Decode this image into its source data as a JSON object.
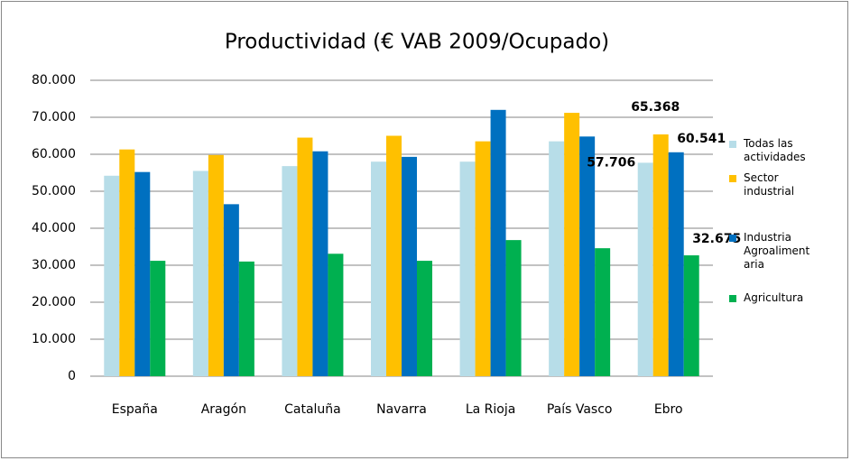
{
  "chart_data": {
    "type": "bar",
    "title": "Productividad (€ VAB 2009/Ocupado)",
    "categories": [
      "España",
      "Aragón",
      "Cataluña",
      "Navarra",
      "La Rioja",
      "País Vasco",
      "Ebro"
    ],
    "series": [
      {
        "name": "Todas las actividades",
        "color": "#b7dde8",
        "values": [
          54200,
          55500,
          56800,
          58000,
          58000,
          63500,
          57706
        ],
        "value_labels": [
          null,
          null,
          null,
          null,
          null,
          null,
          "57.706"
        ]
      },
      {
        "name": "Sector industrial",
        "color": "#ffc000",
        "values": [
          61300,
          59800,
          64500,
          65000,
          63500,
          71200,
          65368
        ],
        "value_labels": [
          null,
          null,
          null,
          null,
          null,
          null,
          "65.368"
        ]
      },
      {
        "name": "Industria Agroalimentaria",
        "color": "#0070c0",
        "values": [
          55200,
          46500,
          60800,
          59300,
          72000,
          64800,
          60541
        ],
        "value_labels": [
          null,
          null,
          null,
          null,
          null,
          null,
          "60.541"
        ]
      },
      {
        "name": "Agricultura",
        "color": "#00b050",
        "values": [
          31200,
          31000,
          33100,
          31200,
          36800,
          34600,
          32675
        ],
        "value_labels": [
          null,
          null,
          null,
          null,
          null,
          null,
          "32.675"
        ]
      }
    ],
    "ylim": [
      0,
      80000
    ],
    "yticks": [
      0,
      {
        "value": 10000,
        "label": "10.000"
      },
      {
        "value": 20000,
        "label": "20.000"
      },
      {
        "value": 30000,
        "label": "30.000"
      },
      {
        "value": 40000,
        "label": "40.000"
      },
      {
        "value": 50000,
        "label": "50.000"
      },
      {
        "value": 60000,
        "label": "60.000"
      },
      {
        "value": 70000,
        "label": "70.000"
      },
      {
        "value": 80000,
        "label": "80.000"
      }
    ],
    "grid": true,
    "legend": "right"
  }
}
